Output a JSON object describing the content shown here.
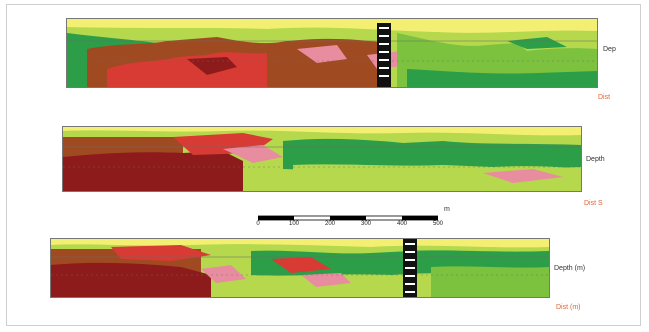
{
  "colors": {
    "yellow": "#f2ef72",
    "light_green": "#b5d84c",
    "mid_green": "#7cc23f",
    "dark_green": "#2c9e48",
    "pink": "#e88ca0",
    "red": "#d83a34",
    "dark_red": "#8e1b1b",
    "brown": "#a04a22",
    "orange_text": "#e6622b"
  },
  "panels": [
    {
      "right_label": "Dep",
      "bottom_right_label": "Dist"
    },
    {
      "right_label": "Depth",
      "bottom_right_label": "Dist S"
    },
    {
      "right_label": "Depth (m)",
      "bottom_right_label": "Dist (m)"
    }
  ],
  "scale_bar": {
    "tick_labels": [
      "0",
      "100",
      "200",
      "300",
      "400",
      "500"
    ],
    "unit": "m"
  }
}
